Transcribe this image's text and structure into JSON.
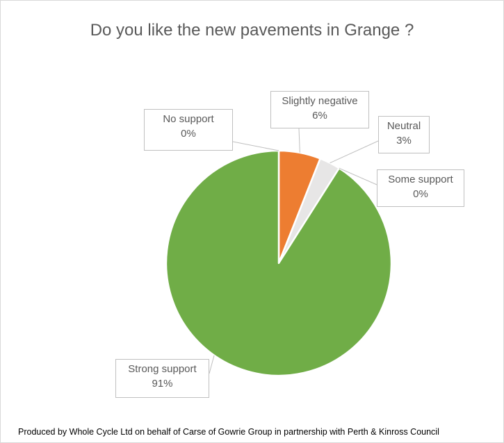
{
  "chart_data": {
    "type": "pie",
    "title": "Do you like the new pavements in Grange ?",
    "slices": [
      {
        "label": "Slightly negative",
        "value": 6,
        "value_label": "6%",
        "color": "#ED7D31"
      },
      {
        "label": "Neutral",
        "value": 3,
        "value_label": "3%",
        "color": "#E7E6E6"
      },
      {
        "label": "Some support",
        "value": 0,
        "value_label": "0%",
        "color": "#FFC000"
      },
      {
        "label": "Strong support",
        "value": 91,
        "value_label": "91%",
        "color": "#70AD47"
      },
      {
        "label": "No support",
        "value": 0,
        "value_label": "0%",
        "color": "#4472C4"
      }
    ],
    "legend": "none",
    "data_labels": "callouts"
  },
  "footer": "Produced by Whole Cycle Ltd on behalf of Carse of Gowrie Group in partnership with  Perth & Kinross Council"
}
